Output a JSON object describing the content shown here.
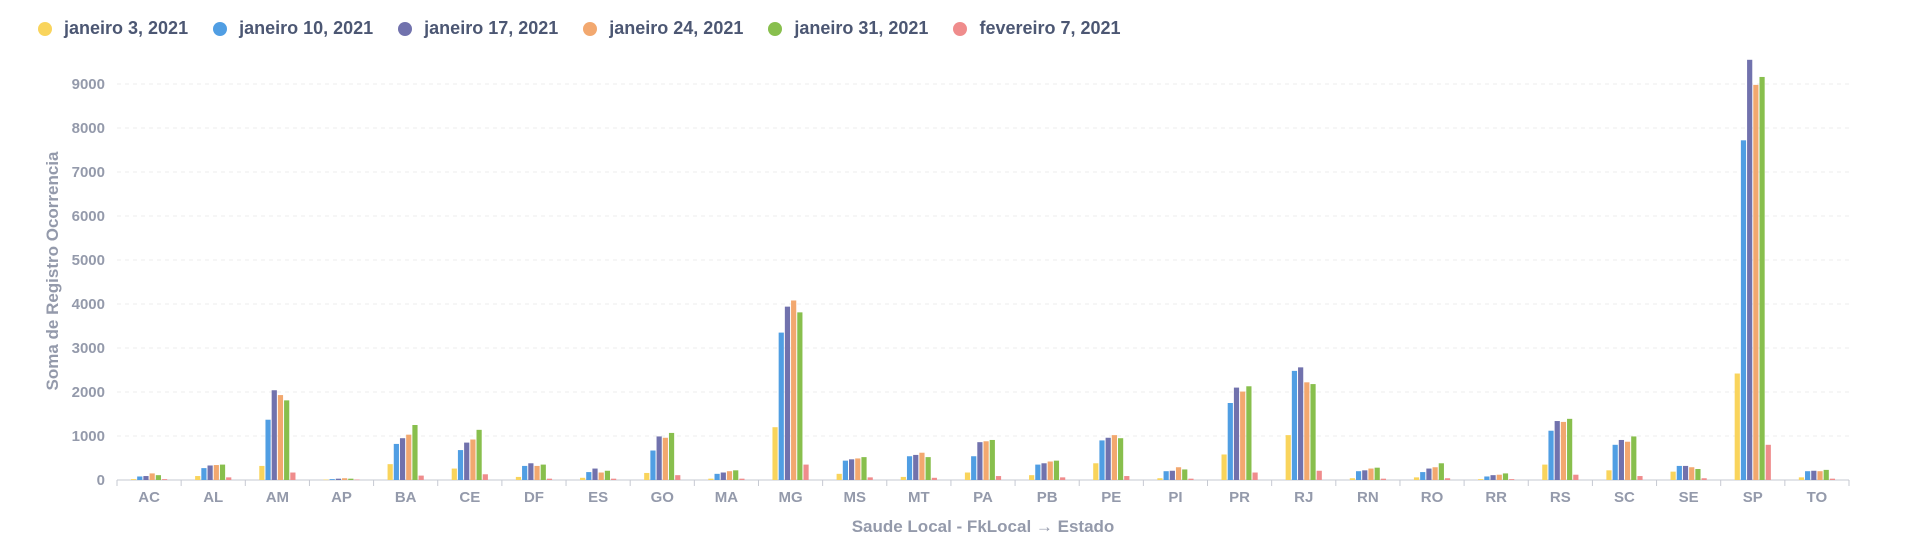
{
  "chart_data": {
    "type": "bar",
    "xlabel": "Saude Local - FkLocal → Estado",
    "ylabel": "Soma de Registro Ocorrencia",
    "ylim": [
      0,
      9500
    ],
    "yticks": [
      "0",
      "1000",
      "2000",
      "3000",
      "4000",
      "5000",
      "6000",
      "7000",
      "8000",
      "9000"
    ],
    "grid": true,
    "legend_position": "top-left",
    "categories": [
      "AC",
      "AL",
      "AM",
      "AP",
      "BA",
      "CE",
      "DF",
      "ES",
      "GO",
      "MA",
      "MG",
      "MS",
      "MT",
      "PA",
      "PB",
      "PE",
      "PI",
      "PR",
      "RJ",
      "RN",
      "RO",
      "RR",
      "RS",
      "SC",
      "SE",
      "SP",
      "TO"
    ],
    "series": [
      {
        "name": "janeiro 3, 2021",
        "color": "#f9d45c",
        "values": [
          20,
          90,
          320,
          10,
          360,
          260,
          70,
          50,
          160,
          30,
          1200,
          140,
          70,
          170,
          110,
          380,
          40,
          580,
          1020,
          40,
          60,
          20,
          350,
          220,
          190,
          2420,
          60
        ]
      },
      {
        "name": "janeiro 10, 2021",
        "color": "#509ee3",
        "values": [
          80,
          270,
          1370,
          20,
          820,
          680,
          320,
          180,
          670,
          140,
          3350,
          440,
          540,
          540,
          350,
          900,
          200,
          1750,
          2480,
          200,
          180,
          80,
          1120,
          800,
          320,
          7720,
          200
        ]
      },
      {
        "name": "janeiro 17, 2021",
        "color": "#7172ad",
        "values": [
          90,
          330,
          2040,
          30,
          950,
          850,
          380,
          260,
          990,
          170,
          3940,
          470,
          570,
          860,
          380,
          960,
          210,
          2100,
          2560,
          220,
          260,
          110,
          1340,
          910,
          320,
          9550,
          210
        ]
      },
      {
        "name": "janeiro 24, 2021",
        "color": "#f2a86f",
        "values": [
          150,
          340,
          1930,
          40,
          1030,
          920,
          320,
          170,
          960,
          200,
          4080,
          490,
          620,
          880,
          420,
          1020,
          290,
          2010,
          2220,
          260,
          290,
          120,
          1320,
          870,
          290,
          8980,
          200
        ]
      },
      {
        "name": "janeiro 31, 2021",
        "color": "#88bf4d",
        "values": [
          110,
          350,
          1810,
          30,
          1250,
          1140,
          350,
          210,
          1070,
          220,
          3810,
          520,
          520,
          910,
          440,
          950,
          240,
          2130,
          2180,
          280,
          380,
          150,
          1390,
          990,
          250,
          9160,
          230
        ]
      },
      {
        "name": "fevereiro 7, 2021",
        "color": "#ef8c8c",
        "values": [
          20,
          60,
          170,
          10,
          100,
          130,
          30,
          30,
          110,
          30,
          350,
          60,
          50,
          90,
          60,
          90,
          30,
          170,
          210,
          30,
          40,
          20,
          120,
          90,
          40,
          800,
          30
        ]
      }
    ]
  }
}
